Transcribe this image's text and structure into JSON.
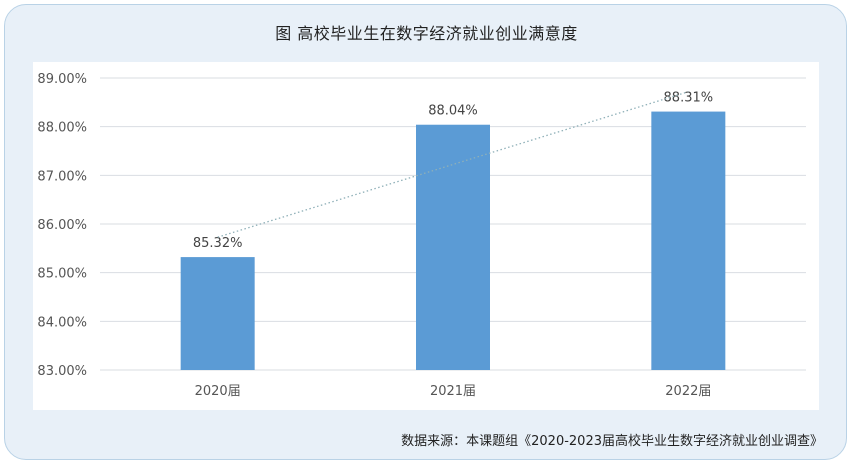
{
  "figure": {
    "title": "图  高校毕业生在数字经济就业创业满意度",
    "source": "数据来源：本课题组《2020-2023届高校毕业生数字经济就业创业调查》"
  },
  "colors": {
    "bar": "#5b9bd5",
    "trend": "#8fb0b8",
    "grid": "#dadde2",
    "axis_text": "#555555",
    "label_text": "#444444",
    "frame_bg": "#e8f0f8"
  },
  "chart_data": {
    "type": "bar",
    "title": "图  高校毕业生在数字经济就业创业满意度",
    "categories": [
      "2020届",
      "2021届",
      "2022届"
    ],
    "values": [
      85.32,
      88.04,
      88.31
    ],
    "data_labels": [
      "85.32%",
      "88.04%",
      "88.31%"
    ],
    "ylim": [
      83,
      89
    ],
    "yticks": [
      "83.00%",
      "84.00%",
      "85.00%",
      "86.00%",
      "87.00%",
      "88.00%",
      "89.00%"
    ],
    "trendline": "linear",
    "grid": true
  }
}
